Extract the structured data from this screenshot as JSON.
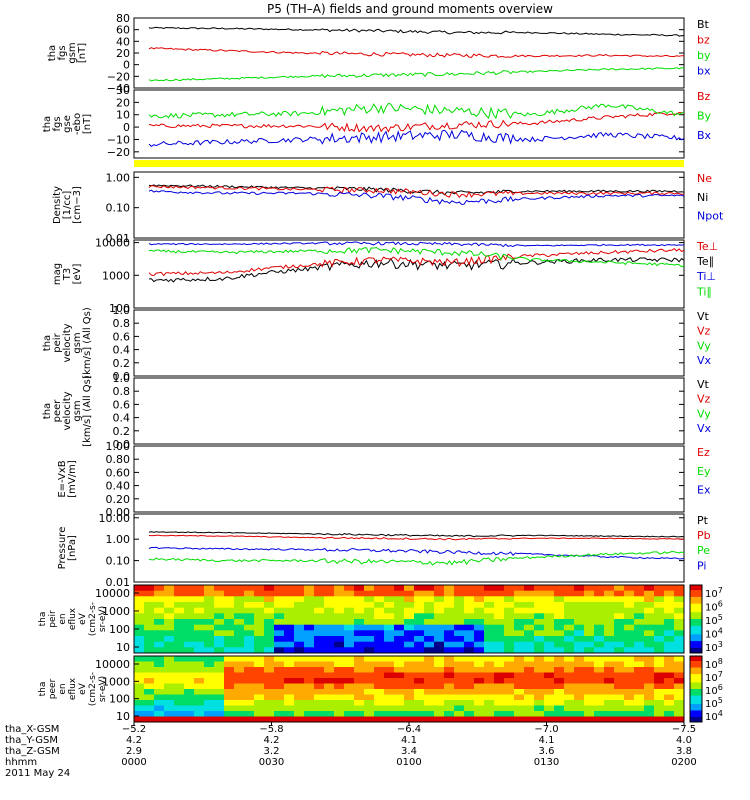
{
  "title": "P5 (TH–A) fields and ground moments overview",
  "date_label": "2011 May 24",
  "colors": {
    "black": "#000000",
    "red": "#e00000",
    "green": "#00dd00",
    "blue": "#0000dd",
    "yellow": "#ffff00"
  },
  "panels": [
    {
      "id": "fgs_gsm",
      "ylabel": [
        "tha",
        "fgs",
        "gsm",
        "[nT]"
      ],
      "ylim": [
        -40,
        80
      ],
      "log": false,
      "ticks": [
        {
          "v": 80,
          "l": "80"
        },
        {
          "v": 60,
          "l": "60"
        },
        {
          "v": 40,
          "l": "40"
        },
        {
          "v": 20,
          "l": "20"
        },
        {
          "v": 0,
          "l": "0"
        },
        {
          "v": -20,
          "l": "−20"
        },
        {
          "v": -40,
          "l": "−40"
        }
      ],
      "legend": [
        {
          "label": "Bt",
          "color": "black"
        },
        {
          "label": "bz",
          "color": "red"
        },
        {
          "label": "by",
          "color": "green"
        },
        {
          "label": "bx",
          "color": "blue"
        }
      ],
      "series": [
        {
          "color": "black",
          "base": [
            63,
            62,
            60,
            58,
            55,
            55,
            52,
            50
          ],
          "noise": 1.2
        },
        {
          "color": "red",
          "base": [
            28,
            24,
            20,
            18,
            16,
            15,
            16,
            14
          ],
          "noise": 1.5
        },
        {
          "color": "green",
          "base": [
            -27,
            -24,
            -20,
            -18,
            -16,
            -12,
            -8,
            -6
          ],
          "noise": 1.5
        }
      ]
    },
    {
      "id": "fgs_gse",
      "ylabel": [
        "tha",
        "fgs",
        "gse",
        "-ebo",
        "[nT]"
      ],
      "ylim": [
        -25,
        30
      ],
      "log": false,
      "ticks": [
        {
          "v": 30,
          "l": "30"
        },
        {
          "v": 20,
          "l": "20"
        },
        {
          "v": 10,
          "l": "10"
        },
        {
          "v": 0,
          "l": "0"
        },
        {
          "v": -10,
          "l": "−10"
        },
        {
          "v": -20,
          "l": "−20"
        }
      ],
      "legend": [
        {
          "label": "Bz",
          "color": "red"
        },
        {
          "label": "By",
          "color": "green"
        },
        {
          "label": "Bx",
          "color": "blue"
        }
      ],
      "series": [
        {
          "color": "red",
          "base": [
            1,
            1,
            1,
            -1,
            2,
            3,
            8,
            12
          ],
          "noise": 1.5
        },
        {
          "color": "green",
          "base": [
            9,
            10,
            11,
            16,
            13,
            10,
            18,
            10
          ],
          "noise": 2.0
        },
        {
          "color": "blue",
          "base": [
            -14,
            -12,
            -10,
            -8,
            -6,
            -10,
            -6,
            -9
          ],
          "noise": 2.0
        }
      ]
    },
    {
      "id": "density",
      "ylabel": [
        "Density",
        "[1/cc]",
        "[cm−3]"
      ],
      "ylim": [
        0.01,
        1.5
      ],
      "log": true,
      "ticks": [
        {
          "v": 1.0,
          "l": "1.00"
        },
        {
          "v": 0.1,
          "l": "0.10"
        },
        {
          "v": 0.01,
          "l": "0.01"
        }
      ],
      "legend": [
        {
          "label": "Ne",
          "color": "red"
        },
        {
          "label": "Ni",
          "color": "black"
        },
        {
          "label": "Npot",
          "color": "blue"
        }
      ],
      "series": [
        {
          "color": "black",
          "base": [
            0.55,
            0.5,
            0.45,
            0.4,
            0.3,
            0.35,
            0.35,
            0.35
          ],
          "noise": 0.08
        },
        {
          "color": "red",
          "base": [
            0.5,
            0.45,
            0.4,
            0.38,
            0.28,
            0.3,
            0.3,
            0.3
          ],
          "noise": 0.1
        },
        {
          "color": "blue",
          "base": [
            0.35,
            0.3,
            0.3,
            0.25,
            0.15,
            0.2,
            0.25,
            0.25
          ],
          "noise": 0.1
        }
      ]
    },
    {
      "id": "temperature",
      "ylabel": [
        "mag",
        "T3",
        "[eV]"
      ],
      "ylim": [
        100,
        12000
      ],
      "log": true,
      "ticks": [
        {
          "v": 10000,
          "l": "10000"
        },
        {
          "v": 1000,
          "l": "1000"
        },
        {
          "v": 100,
          "l": "100"
        }
      ],
      "legend": [
        {
          "label": "Te⊥",
          "color": "red"
        },
        {
          "label": "Te∥",
          "color": "black"
        },
        {
          "label": "Ti⊥",
          "color": "blue"
        },
        {
          "label": "Ti∥",
          "color": "green"
        }
      ],
      "series": [
        {
          "color": "black",
          "base": [
            700,
            800,
            1500,
            2500,
            2000,
            2500,
            3000,
            3000
          ],
          "noise": 0.15
        },
        {
          "color": "red",
          "base": [
            1100,
            1200,
            2000,
            3000,
            2500,
            4000,
            5000,
            6000
          ],
          "noise": 0.12
        },
        {
          "color": "green",
          "base": [
            5500,
            5000,
            5500,
            6000,
            5000,
            3000,
            2500,
            2000
          ],
          "noise": 0.1
        },
        {
          "color": "blue",
          "base": [
            9000,
            9000,
            9500,
            9500,
            9000,
            8000,
            8500,
            8500
          ],
          "noise": 0.05
        }
      ]
    },
    {
      "id": "peir_velocity",
      "ylabel": [
        "tha",
        "peir",
        "velocity",
        "gsm",
        "[km/s] (All Qs)"
      ],
      "ylim": [
        0,
        1
      ],
      "log": false,
      "ticks": [
        {
          "v": 1.0,
          "l": "1.0"
        },
        {
          "v": 0.8,
          "l": "0.8"
        },
        {
          "v": 0.6,
          "l": "0.6"
        },
        {
          "v": 0.4,
          "l": "0.4"
        },
        {
          "v": 0.2,
          "l": "0.2"
        },
        {
          "v": 0.0,
          "l": "0.0"
        }
      ],
      "legend": [
        {
          "label": "Vt",
          "color": "black"
        },
        {
          "label": "Vz",
          "color": "red"
        },
        {
          "label": "Vy",
          "color": "green"
        },
        {
          "label": "Vx",
          "color": "blue"
        }
      ],
      "series": []
    },
    {
      "id": "peer_velocity",
      "ylabel": [
        "tha",
        "peer",
        "velocity",
        "gsm",
        "[km/s] (All Qs)"
      ],
      "ylim": [
        0,
        1
      ],
      "log": false,
      "ticks": [
        {
          "v": 1.0,
          "l": "1.0"
        },
        {
          "v": 0.8,
          "l": "0.8"
        },
        {
          "v": 0.6,
          "l": "0.6"
        },
        {
          "v": 0.4,
          "l": "0.4"
        },
        {
          "v": 0.2,
          "l": "0.2"
        },
        {
          "v": 0.0,
          "l": "0.0"
        }
      ],
      "legend": [
        {
          "label": "Vt",
          "color": "black"
        },
        {
          "label": "Vz",
          "color": "red"
        },
        {
          "label": "Vy",
          "color": "green"
        },
        {
          "label": "Vx",
          "color": "blue"
        }
      ],
      "series": []
    },
    {
      "id": "efield",
      "ylabel": [
        "E=-VxB",
        "[mV/m]"
      ],
      "ylim": [
        0,
        1
      ],
      "log": false,
      "ticks": [
        {
          "v": 1.0,
          "l": "1.00"
        },
        {
          "v": 0.8,
          "l": "0.80"
        },
        {
          "v": 0.6,
          "l": "0.60"
        },
        {
          "v": 0.4,
          "l": "0.40"
        },
        {
          "v": 0.2,
          "l": "0.20"
        },
        {
          "v": 0.0,
          "l": "0.00"
        }
      ],
      "legend": [
        {
          "label": "Ez",
          "color": "red"
        },
        {
          "label": "Ey",
          "color": "green"
        },
        {
          "label": "Ex",
          "color": "blue"
        }
      ],
      "series": []
    },
    {
      "id": "pressure",
      "ylabel": [
        "Pressure",
        "[nPa]"
      ],
      "ylim": [
        0.01,
        15
      ],
      "log": true,
      "ticks": [
        {
          "v": 10,
          "l": "10.00"
        },
        {
          "v": 1,
          "l": "1.00"
        },
        {
          "v": 0.1,
          "l": "0.10"
        },
        {
          "v": 0.01,
          "l": "0.01"
        }
      ],
      "legend": [
        {
          "label": "Pt",
          "color": "black"
        },
        {
          "label": "Pb",
          "color": "red"
        },
        {
          "label": "Pe",
          "color": "green"
        },
        {
          "label": "Pi",
          "color": "blue"
        }
      ],
      "series": [
        {
          "color": "black",
          "base": [
            2.2,
            2.0,
            1.8,
            1.6,
            1.4,
            1.5,
            1.4,
            1.3
          ],
          "noise": 0.04
        },
        {
          "color": "red",
          "base": [
            1.5,
            1.4,
            1.2,
            1.1,
            1.0,
            1.1,
            1.1,
            1.0
          ],
          "noise": 0.04
        },
        {
          "color": "blue",
          "base": [
            0.4,
            0.35,
            0.33,
            0.3,
            0.25,
            0.2,
            0.15,
            0.12
          ],
          "noise": 0.08
        },
        {
          "color": "green",
          "base": [
            0.12,
            0.1,
            0.1,
            0.09,
            0.08,
            0.14,
            0.2,
            0.25
          ],
          "noise": 0.12
        }
      ]
    }
  ],
  "spectrograms": [
    {
      "id": "peir_eflux",
      "ylabel": [
        "tha",
        "peir",
        "en",
        "eflux",
        "eV",
        "(cm2-s-",
        "sr-eV)"
      ],
      "yticks": [
        "10000",
        "1000",
        "100",
        "10"
      ],
      "colorbar": [
        {
          "exp": "7"
        },
        {
          "exp": "6"
        },
        {
          "exp": "5"
        },
        {
          "exp": "4"
        },
        {
          "exp": "3"
        }
      ]
    },
    {
      "id": "peer_eflux",
      "ylabel": [
        "tha",
        "peer",
        "en",
        "eflux",
        "eV",
        "(cm2-s-",
        "sr-eV)"
      ],
      "yticks": [
        "10000",
        "1000",
        "100",
        "10"
      ],
      "colorbar": [
        {
          "exp": "8"
        },
        {
          "exp": "7"
        },
        {
          "exp": "6"
        },
        {
          "exp": "5"
        },
        {
          "exp": "4"
        }
      ]
    }
  ],
  "xaxis": {
    "row_labels": [
      "tha_X-GSM",
      "tha_Y-GSM",
      "tha_Z-GSM",
      "hhmm",
      "2011 May 24"
    ],
    "ticks": [
      {
        "x": "−5.2",
        "y": "4.2",
        "z": "2.9",
        "t": "0000"
      },
      {
        "x": "−5.8",
        "y": "4.2",
        "z": "3.2",
        "t": "0030"
      },
      {
        "x": "−6.4",
        "y": "4.1",
        "z": "3.4",
        "t": "0100"
      },
      {
        "x": "−7.0",
        "y": "4.1",
        "z": "3.6",
        "t": "0130"
      },
      {
        "x": "−7.5",
        "y": "4.0",
        "z": "3.8",
        "t": "0200"
      }
    ]
  }
}
